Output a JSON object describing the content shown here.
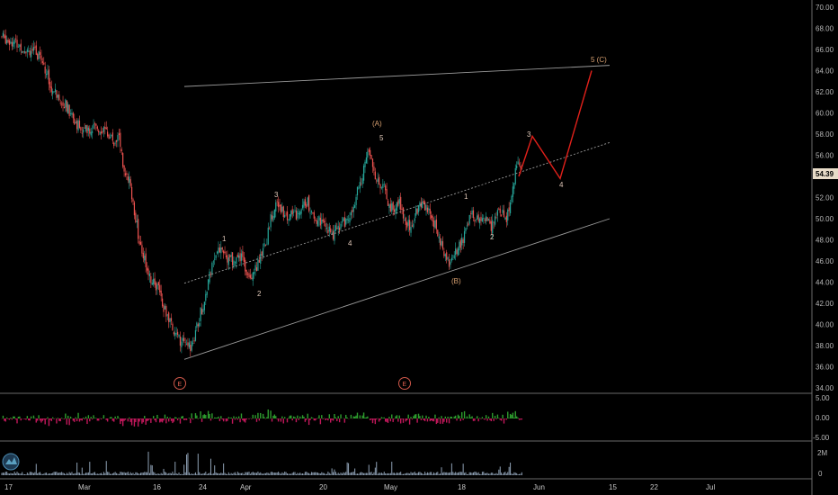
{
  "chart_data": {
    "type": "candlestick",
    "symbol_price_label": "54.39",
    "price_axis": {
      "ticks": [
        34,
        36,
        38,
        40,
        42,
        44,
        46,
        48,
        50,
        52,
        54,
        56,
        58,
        60,
        62,
        64,
        66,
        68,
        70
      ],
      "min": 33.5,
      "max": 70.5
    },
    "oscillator_axis": {
      "ticks": [
        "5.00",
        "0.00",
        "-5.00"
      ]
    },
    "volume_axis": {
      "ticks": [
        "2M",
        "0"
      ]
    },
    "x_labels": [
      "17",
      "Mar",
      "16",
      "24",
      "Apr",
      "20",
      "May",
      "18",
      "Jun",
      "15",
      "22",
      "Jul"
    ],
    "price_path": [
      [
        0,
        67.2
      ],
      [
        2,
        66.8
      ],
      [
        4,
        66.2
      ],
      [
        6,
        65.9
      ],
      [
        8,
        65.0
      ],
      [
        9,
        63.5
      ],
      [
        10,
        62.0
      ],
      [
        12,
        61.2
      ],
      [
        14,
        59.5
      ],
      [
        16,
        58.2
      ],
      [
        18,
        58.6
      ],
      [
        20,
        58.5
      ],
      [
        22,
        57.3
      ],
      [
        23,
        58.0
      ],
      [
        24,
        54.2
      ],
      [
        25,
        53.5
      ],
      [
        26,
        50.6
      ],
      [
        27,
        47.9
      ],
      [
        28,
        46.3
      ],
      [
        29,
        44.5
      ],
      [
        30,
        44.0
      ],
      [
        31,
        43.0
      ],
      [
        32,
        41.3
      ],
      [
        33,
        40.2
      ],
      [
        34,
        39.2
      ],
      [
        35,
        38.4
      ],
      [
        36,
        38.0
      ],
      [
        37,
        37.7
      ],
      [
        38,
        39.3
      ],
      [
        39,
        41.1
      ],
      [
        40,
        42.5
      ],
      [
        41,
        45.2
      ],
      [
        42,
        46.7
      ],
      [
        43,
        47.2
      ],
      [
        44,
        46.3
      ],
      [
        45,
        46.2
      ],
      [
        46,
        45.9
      ],
      [
        47,
        46.5
      ],
      [
        48,
        45.0
      ],
      [
        49,
        44.8
      ],
      [
        50,
        45.5
      ],
      [
        51,
        46.4
      ],
      [
        52,
        48.0
      ],
      [
        53,
        50.5
      ],
      [
        54,
        51.3
      ],
      [
        55,
        50.8
      ],
      [
        56,
        50.3
      ],
      [
        57,
        50.6
      ],
      [
        58,
        50.4
      ],
      [
        59,
        51.8
      ],
      [
        60,
        51.5
      ],
      [
        61,
        50.3
      ],
      [
        62,
        49.8
      ],
      [
        63,
        49.9
      ],
      [
        64,
        48.8
      ],
      [
        65,
        48.6
      ],
      [
        66,
        49.2
      ],
      [
        67,
        49.5
      ],
      [
        68,
        50.2
      ],
      [
        69,
        51.0
      ],
      [
        70,
        53.0
      ],
      [
        71,
        54.5
      ],
      [
        72,
        56.8
      ],
      [
        73,
        54.5
      ],
      [
        74,
        53.2
      ],
      [
        75,
        52.8
      ],
      [
        76,
        51.2
      ],
      [
        77,
        51.0
      ],
      [
        78,
        51.8
      ],
      [
        79,
        49.9
      ],
      [
        80,
        49.4
      ],
      [
        81,
        50.2
      ],
      [
        82,
        51.5
      ],
      [
        83,
        51.2
      ],
      [
        84,
        50.4
      ],
      [
        85,
        49.5
      ],
      [
        86,
        48.0
      ],
      [
        87,
        46.4
      ],
      [
        88,
        45.6
      ],
      [
        89,
        46.9
      ],
      [
        90,
        47.5
      ],
      [
        91,
        48.8
      ],
      [
        92,
        50.7
      ],
      [
        93,
        49.8
      ],
      [
        94,
        50.1
      ],
      [
        95,
        50.2
      ],
      [
        96,
        49.3
      ],
      [
        97,
        50.4
      ],
      [
        98,
        50.7
      ],
      [
        99,
        50.0
      ],
      [
        100,
        52.1
      ],
      [
        101,
        55.3
      ],
      [
        102,
        54.4
      ]
    ],
    "channel": {
      "upper": [
        [
          205,
          62.5
        ],
        [
          678,
          64.5
        ]
      ],
      "upper_start": [
        205,
        51.0
      ],
      "middle": [
        [
          205,
          43.9
        ],
        [
          678,
          57.2
        ]
      ],
      "lower": [
        [
          205,
          36.7
        ],
        [
          678,
          50.0
        ]
      ]
    },
    "projection": [
      [
        577,
        54.0
      ],
      [
        592,
        57.8
      ],
      [
        623,
        53.8
      ],
      [
        658,
        64.0
      ]
    ],
    "wave_labels": [
      {
        "t": "1",
        "pos": "wave-1-a",
        "orange": false
      },
      {
        "t": "2",
        "pos": "wave-2-a",
        "orange": false
      },
      {
        "t": "3",
        "pos": "wave-3-a",
        "orange": false
      },
      {
        "t": "4",
        "pos": "wave-4-a",
        "orange": false
      },
      {
        "t": "5",
        "pos": "wave-5-a",
        "orange": false
      },
      {
        "t": "(A)",
        "pos": "wave-A",
        "orange": true
      },
      {
        "t": "(B)",
        "pos": "wave-B",
        "orange": true
      },
      {
        "t": "1",
        "pos": "wave-1-c",
        "orange": false
      },
      {
        "t": "2",
        "pos": "wave-2-c",
        "orange": false
      },
      {
        "t": "3",
        "pos": "wave-3-c",
        "orange": false
      },
      {
        "t": "4",
        "pos": "wave-4-c",
        "orange": false
      },
      {
        "t": "5 (C)",
        "pos": "wave-5-c",
        "orange": true
      }
    ],
    "event_markers": [
      "E",
      "E"
    ],
    "colors": {
      "up": "#26a69a",
      "down": "#ef5350",
      "channel": "#9a9a9a",
      "projection": "#e0201a",
      "wave_label": "#e0c8b8",
      "wave_label_bracket": "#d8a070",
      "price_tag": "#e8dcc8",
      "osc_up": "#2e9c2e",
      "osc_down": "#c2185b",
      "volume": "#8ea0b4",
      "logo": "#5aa0c0"
    }
  }
}
